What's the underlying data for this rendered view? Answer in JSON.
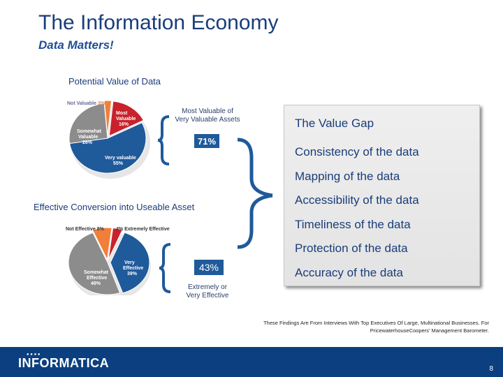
{
  "header": {
    "title": "The Information Economy",
    "subtitle": "Data Matters!"
  },
  "value_section": {
    "heading": "Potential Value of Data",
    "bracket_label": "Most Valuable of\nVery Valuable Assets",
    "badge": "71%",
    "slices": [
      {
        "label": "Not Valuable",
        "value": "3%",
        "pct": 3,
        "color": "#f07f3a"
      },
      {
        "label": "Most Valuable",
        "value": "16%",
        "pct": 16,
        "color": "#c8222d"
      },
      {
        "label": "Very valuable",
        "value": "55%",
        "pct": 55,
        "color": "#1f5a9a"
      },
      {
        "label": "Somewhat Valuable",
        "value": "26%",
        "pct": 26,
        "color": "#8c8c8c"
      }
    ]
  },
  "conversion_section": {
    "heading": "Effective Conversion into Useable Asset",
    "bracket_label": "Extremely or\nVery Effective",
    "badge": "43%",
    "slices": [
      {
        "label": "Not Effective",
        "value": "8%",
        "pct": 8,
        "color": "#f07f3a"
      },
      {
        "label": "Extremely Effective",
        "value": "4%",
        "pct": 4,
        "color": "#c8222d"
      },
      {
        "label": "Very Effective",
        "value": "39%",
        "pct": 39,
        "color": "#1f5a9a"
      },
      {
        "label": "Somewhat Effective",
        "value": "49%",
        "pct": 49,
        "color": "#8c8c8c"
      }
    ]
  },
  "value_gap": {
    "title": "The Value Gap",
    "items": [
      "Consistency of the data",
      "Mapping of the data",
      "Accessibility of the data",
      "Timeliness of the data",
      "Protection of the data",
      "Accuracy of the data"
    ]
  },
  "footnote": "These Findings Are From Interviews With Top Executives Of Large, Multinational Businesses. For PricewaterhouseCoopers' Management Barometer.",
  "footer": {
    "logo": "INFORMATICA",
    "page": "8"
  }
}
